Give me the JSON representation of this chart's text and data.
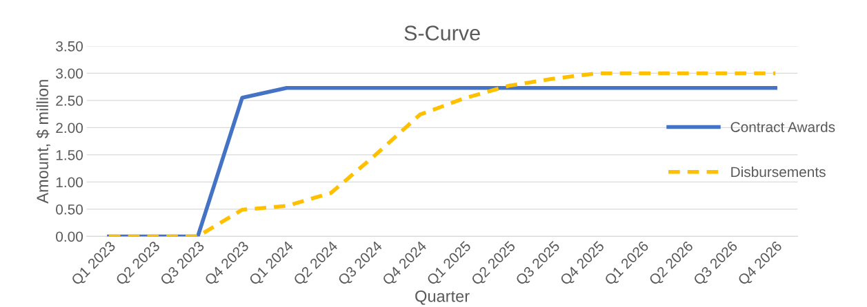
{
  "chart_data": {
    "type": "line",
    "title": "S-Curve",
    "xlabel": "Quarter",
    "ylabel": "Amount, $ million",
    "categories": [
      "Q1 2023",
      "Q2 2023",
      "Q3 2023",
      "Q4 2023",
      "Q1 2024",
      "Q2 2024",
      "Q3 2024",
      "Q4 2024",
      "Q1 2025",
      "Q2 2025",
      "Q3 2025",
      "Q4 2025",
      "Q1 2026",
      "Q2 2026",
      "Q3 2026",
      "Q4 2026"
    ],
    "series": [
      {
        "name": "Contract Awards",
        "color": "#4472c4",
        "line_style": "solid",
        "values": [
          0,
          0,
          0,
          2.55,
          2.73,
          2.73,
          2.73,
          2.73,
          2.73,
          2.73,
          2.73,
          2.73,
          2.73,
          2.73,
          2.73,
          2.73
        ]
      },
      {
        "name": "Disbursements",
        "color": "#ffc000",
        "line_style": "dashed",
        "values": [
          0,
          0,
          0,
          0.49,
          0.56,
          0.8,
          1.5,
          2.24,
          2.54,
          2.77,
          2.9,
          3.0,
          3.0,
          3.0,
          3.0,
          3.0
        ]
      }
    ],
    "ylim": [
      0,
      3.5
    ],
    "yticks": [
      {
        "value": 0,
        "label": "0.00"
      },
      {
        "value": 0.5,
        "label": "0.50"
      },
      {
        "value": 1,
        "label": "1.00"
      },
      {
        "value": 1.5,
        "label": "1.50"
      },
      {
        "value": 2,
        "label": "2.00"
      },
      {
        "value": 2.5,
        "label": "2.50"
      },
      {
        "value": 3,
        "label": "3.00"
      },
      {
        "value": 3.5,
        "label": "3.50"
      }
    ],
    "grid": "y",
    "legend": "right",
    "marker": "none"
  }
}
